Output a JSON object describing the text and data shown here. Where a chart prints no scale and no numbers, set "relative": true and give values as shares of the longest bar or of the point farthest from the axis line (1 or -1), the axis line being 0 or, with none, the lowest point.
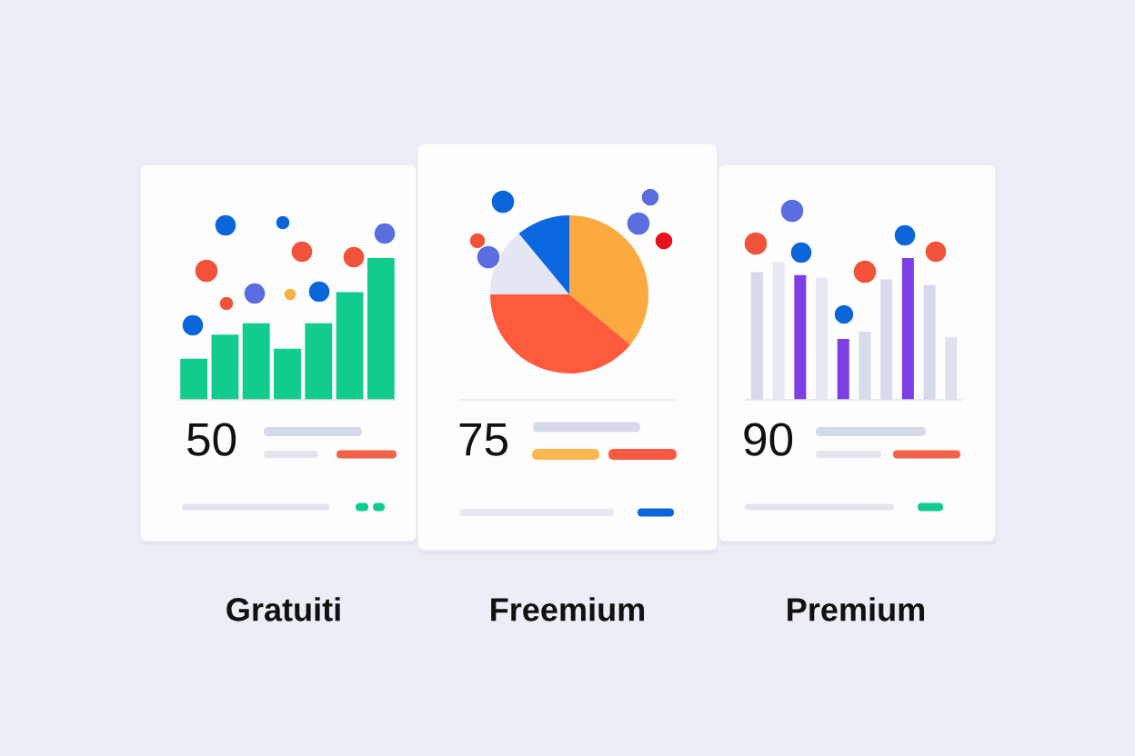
{
  "chart_data": [
    {
      "type": "bar",
      "title": "Gratuiti",
      "categories": [
        null,
        null,
        null,
        null,
        null,
        null,
        null
      ],
      "values": [
        0.29,
        0.46,
        0.54,
        0.36,
        0.54,
        0.76,
        1
      ],
      "color": "#12cc8e",
      "relative": true,
      "annotations": [
        "50"
      ]
    },
    {
      "type": "pie",
      "title": "Freemium",
      "categories": [
        null,
        null,
        null,
        null
      ],
      "values": [
        36,
        39,
        14,
        11
      ],
      "colors": [
        "#fbaa3f",
        "#fe5a3c",
        "#e4e6f3",
        "#0a67e0"
      ],
      "annotations": [
        "75"
      ]
    },
    {
      "type": "bar",
      "title": "Premium",
      "categories": [
        null,
        null,
        null,
        null,
        null,
        null,
        null,
        null,
        null,
        null
      ],
      "values": [
        0.9,
        0.97,
        0.88,
        0.86,
        0.43,
        0.48,
        0.85,
        1,
        0.81,
        0.44
      ],
      "colors": [
        "#d6daea",
        "#e6e8f3",
        "#7b3fe4",
        "#e6e8f3",
        "#7b3fe4",
        "#d8dcea",
        "#d8dcea",
        "#7b3fe4",
        "#d5d9e8",
        "#dfe2ee"
      ],
      "relative": true,
      "annotations": [
        "90"
      ]
    }
  ]
}
